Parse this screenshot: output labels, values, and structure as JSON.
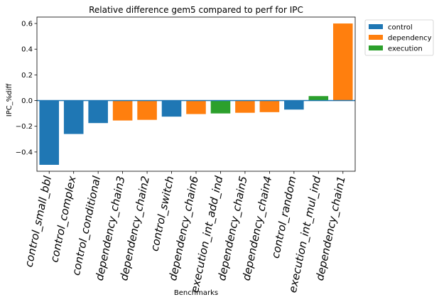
{
  "chart_data": {
    "type": "bar",
    "title": "Relative difference gem5 compared to perf for IPC",
    "xlabel": "Benchmarks",
    "ylabel": "IPC_%diff",
    "ylim": [
      -0.55,
      0.65
    ],
    "yticks": [
      -0.4,
      -0.2,
      0.0,
      0.2,
      0.4,
      0.6
    ],
    "ytick_labels": [
      "−0.4",
      "−0.2",
      "0.0",
      "0.2",
      "0.4",
      "0.6"
    ],
    "grid": false,
    "legend_position": "outside-top-right",
    "zero_line_color": "#1f77b4",
    "categories": [
      "control_small_bbl",
      "control_complex",
      "control_conditional",
      "dependency_chain3",
      "dependency_chain2",
      "control_switch",
      "dependency_chain6",
      "execution_int_add_ind",
      "dependency_chain5",
      "dependency_chain4",
      "control_random",
      "execution_int_mul_ind",
      "dependency_chain1"
    ],
    "values": [
      -0.5,
      -0.26,
      -0.175,
      -0.155,
      -0.15,
      -0.125,
      -0.105,
      -0.1,
      -0.095,
      -0.09,
      -0.07,
      0.035,
      0.6
    ],
    "groups": [
      "control",
      "control",
      "control",
      "dependency",
      "dependency",
      "control",
      "dependency",
      "execution",
      "dependency",
      "dependency",
      "control",
      "execution",
      "dependency"
    ],
    "legend": [
      {
        "name": "control",
        "color": "#1f77b4"
      },
      {
        "name": "dependency",
        "color": "#ff7f0e"
      },
      {
        "name": "execution",
        "color": "#2ca02c"
      }
    ]
  }
}
